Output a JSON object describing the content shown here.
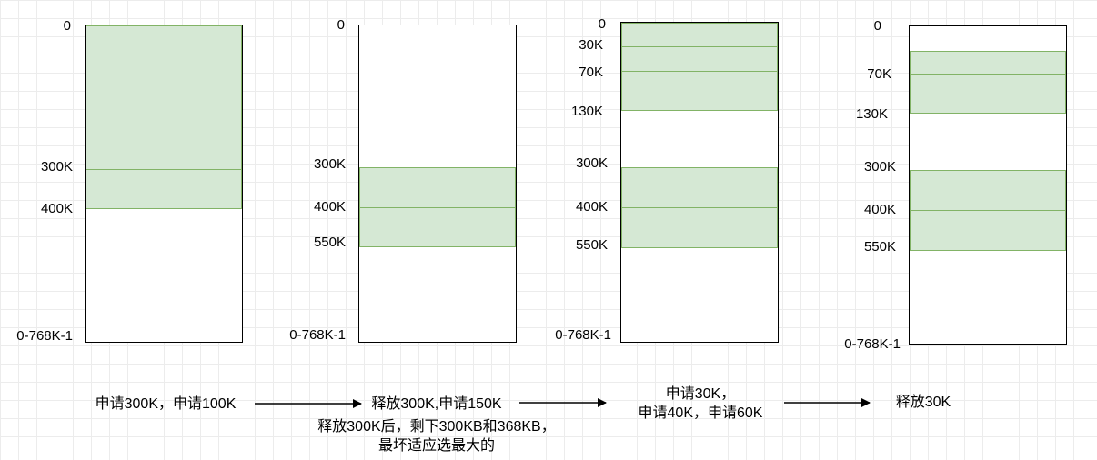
{
  "panels": [
    {
      "labels": [
        "0",
        "300K",
        "400K",
        "0-768K-1"
      ],
      "segments": [
        [
          0,
          300
        ],
        [
          300,
          400
        ]
      ]
    },
    {
      "labels": [
        "0",
        "300K",
        "400K",
        "550K",
        "0-768K-1"
      ],
      "segments": [
        [
          300,
          400
        ],
        [
          400,
          550
        ]
      ]
    },
    {
      "labels": [
        "0",
        "30K",
        "70K",
        "130K",
        "300K",
        "400K",
        "550K",
        "0-768K-1"
      ],
      "segments": [
        [
          0,
          30
        ],
        [
          30,
          70
        ],
        [
          70,
          130
        ],
        [
          300,
          400
        ],
        [
          400,
          550
        ]
      ]
    },
    {
      "labels": [
        "0",
        "70K",
        "130K",
        "300K",
        "400K",
        "550K",
        "0-768K-1"
      ],
      "segments": [
        [
          30,
          70
        ],
        [
          70,
          130
        ],
        [
          300,
          400
        ],
        [
          400,
          550
        ]
      ]
    }
  ],
  "steps": {
    "s1": "申请300K，申请100K",
    "s2": "释放300K,申请150K",
    "s2_note_line1": "释放300K后，剩下300KB和368KB，",
    "s2_note_line2": "最坏适应选最大的",
    "s3_line1": "申请30K，",
    "s3_line2": "申请40K，申请60K",
    "s4": "释放30K"
  },
  "colors": {
    "allocated_fill": "#d5e8d4",
    "allocated_stroke": "#82b366"
  }
}
